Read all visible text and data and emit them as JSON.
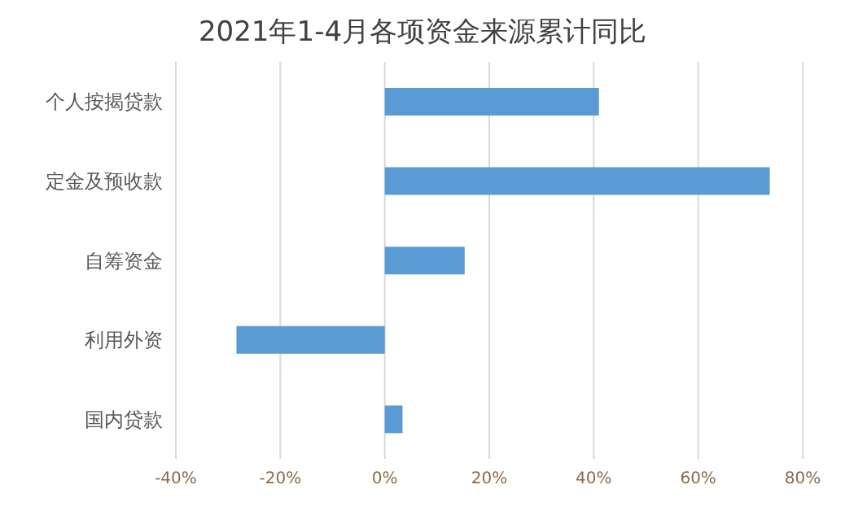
{
  "chart_data": {
    "type": "bar",
    "orientation": "horizontal",
    "title": "2021年1-4月各项资金来源累计同比",
    "categories": [
      "个人按揭贷款",
      "定金及预收款",
      "自筹资金",
      "利用外资",
      "国内贷款"
    ],
    "values": [
      41.0,
      73.7,
      15.3,
      -28.4,
      3.4
    ],
    "color": "#5b9bd5",
    "xlim": [
      -40,
      80
    ],
    "xticks": [
      {
        "value": -40,
        "label": "-40%"
      },
      {
        "value": -20,
        "label": "-20%"
      },
      {
        "value": 0,
        "label": "0%"
      },
      {
        "value": 20,
        "label": "20%"
      },
      {
        "value": 40,
        "label": "40%"
      },
      {
        "value": 60,
        "label": "60%"
      },
      {
        "value": 80,
        "label": "80%"
      }
    ],
    "grid": "x"
  }
}
